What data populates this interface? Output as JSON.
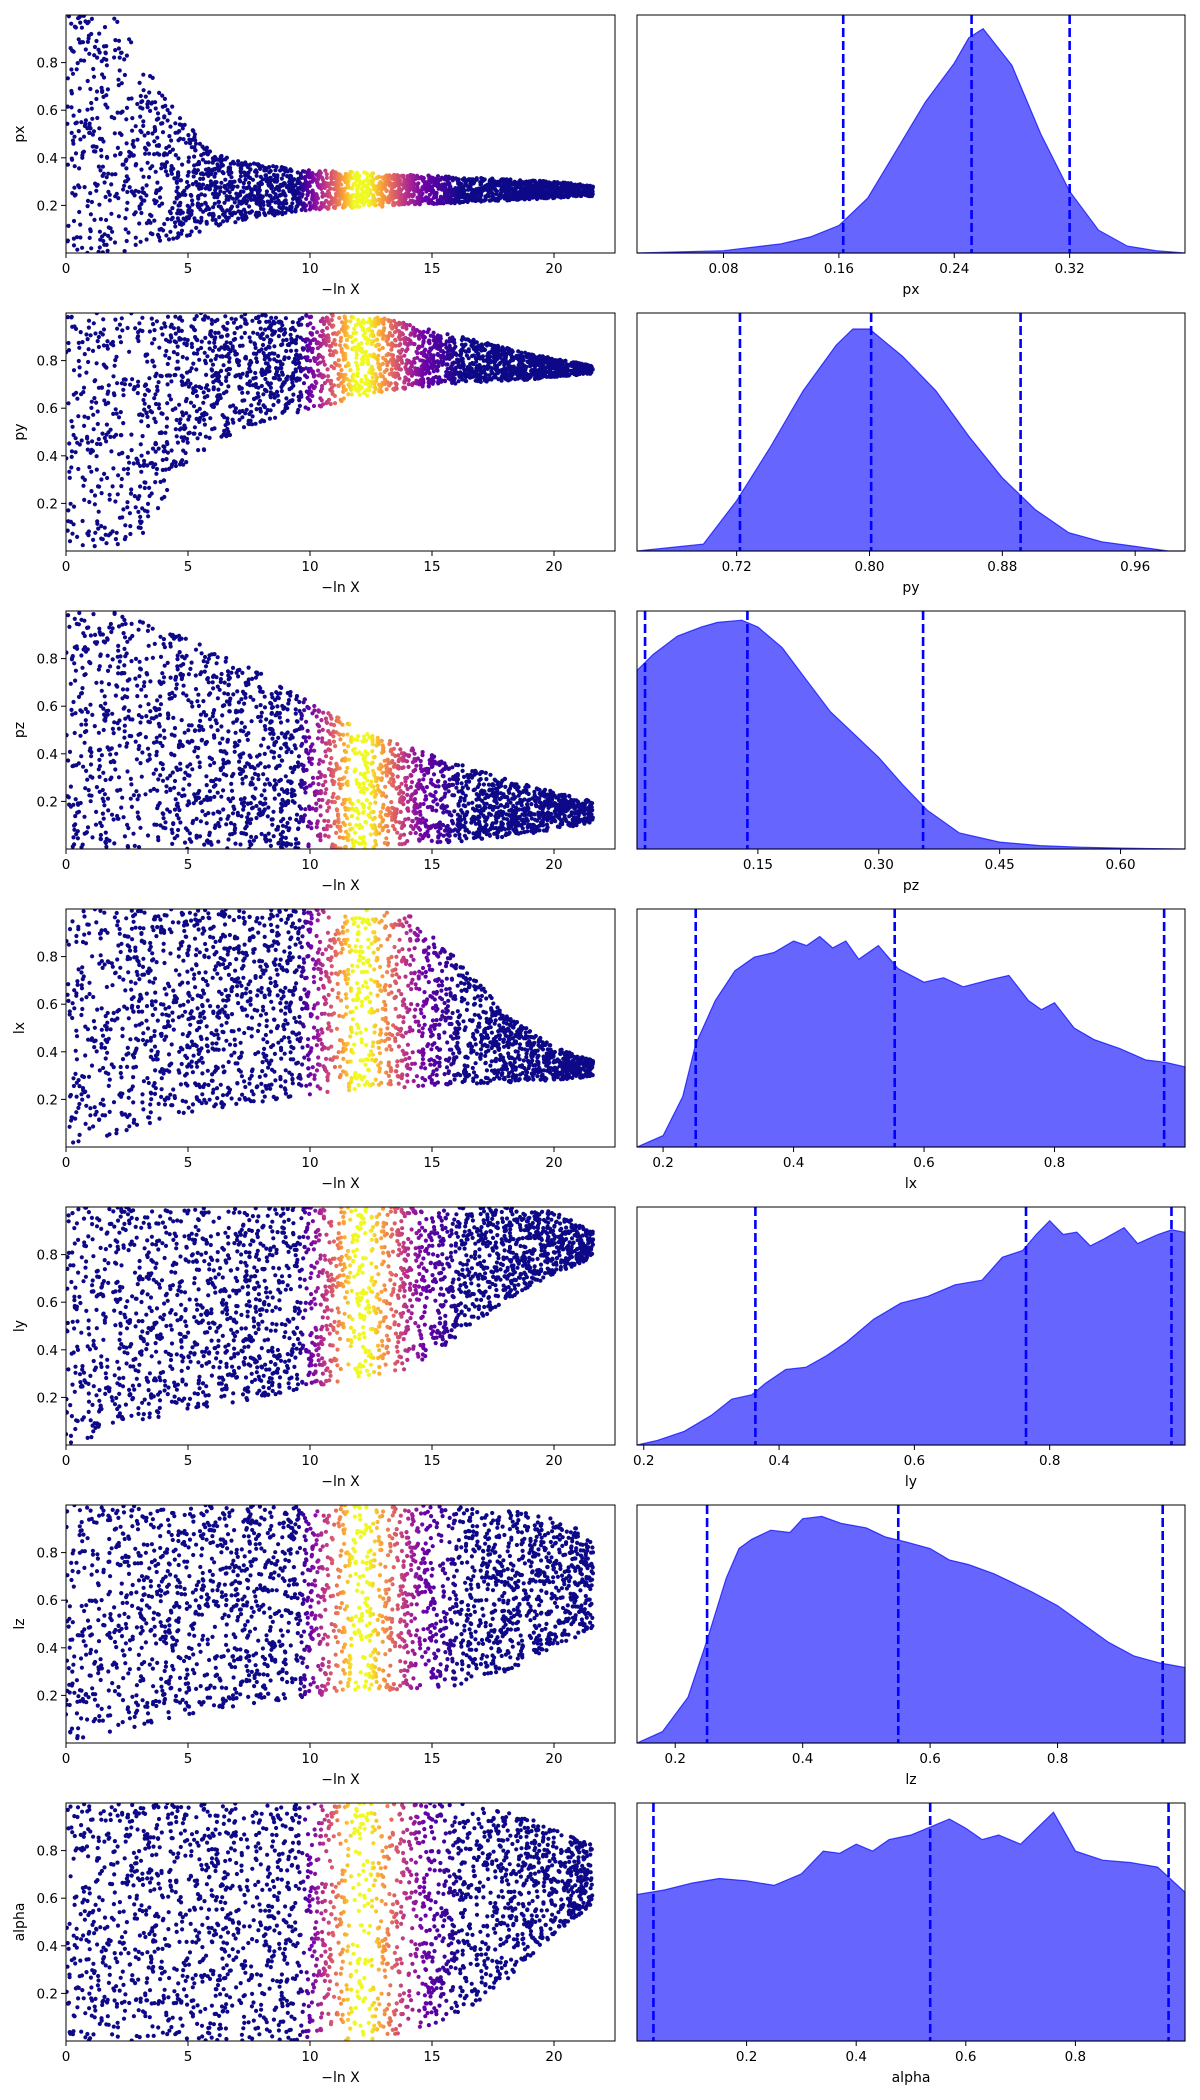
{
  "figure": {
    "background": "#ffffff",
    "trace_xlabel": "−ln X",
    "colormap": "plasma",
    "kde_fill_color": "#0000ff",
    "kde_fill_alpha": 0.6,
    "quantile_line_color": "#0000ff",
    "quantile_line_style": "dashed"
  },
  "chart_data": [
    {
      "type": "scatter",
      "panel": "trace",
      "param": "px",
      "ylabel": "px",
      "xlabel": "−ln X",
      "xlim": [
        0,
        22.5
      ],
      "ylim": [
        0,
        1
      ],
      "xticks": [
        0,
        5,
        10,
        15,
        20
      ],
      "yticks": [
        0.2,
        0.4,
        0.6,
        0.8
      ],
      "x": [
        0,
        2,
        4,
        6,
        8,
        10,
        12,
        14,
        16,
        18,
        20,
        22
      ],
      "y_low": [
        0.0,
        0.0,
        0.03,
        0.11,
        0.15,
        0.18,
        0.19,
        0.2,
        0.21,
        0.22,
        0.23,
        0.24
      ],
      "y_high": [
        1.0,
        1.0,
        0.66,
        0.42,
        0.37,
        0.35,
        0.34,
        0.33,
        0.32,
        0.31,
        0.3,
        0.28
      ],
      "color_peak": 12
    },
    {
      "type": "area",
      "panel": "posterior",
      "param": "px",
      "xlabel": "px",
      "xlim": [
        0.02,
        0.4
      ],
      "xticks": [
        0.08,
        0.16,
        0.24,
        0.32
      ],
      "x": [
        0.02,
        0.08,
        0.12,
        0.14,
        0.16,
        0.18,
        0.2,
        0.22,
        0.24,
        0.25,
        0.26,
        0.28,
        0.3,
        0.32,
        0.34,
        0.36,
        0.38,
        0.4
      ],
      "y": [
        0.0,
        0.01,
        0.04,
        0.07,
        0.12,
        0.24,
        0.45,
        0.66,
        0.83,
        0.94,
        0.98,
        0.82,
        0.52,
        0.27,
        0.1,
        0.03,
        0.01,
        0.0
      ],
      "quantiles": [
        0.163,
        0.252,
        0.32
      ]
    },
    {
      "type": "scatter",
      "panel": "trace",
      "param": "py",
      "ylabel": "py",
      "xlabel": "−ln X",
      "xlim": [
        0,
        22.5
      ],
      "ylim": [
        0,
        1
      ],
      "xticks": [
        0,
        5,
        10,
        15,
        20
      ],
      "yticks": [
        0.2,
        0.4,
        0.6,
        0.8
      ],
      "x": [
        0,
        2,
        3,
        5,
        7,
        9,
        11,
        13,
        15,
        17,
        19,
        21,
        22
      ],
      "y_low": [
        0.0,
        0.0,
        0.05,
        0.38,
        0.5,
        0.57,
        0.62,
        0.67,
        0.69,
        0.71,
        0.72,
        0.74,
        0.75
      ],
      "y_high": [
        1.0,
        1.0,
        1.0,
        1.0,
        1.0,
        1.0,
        1.0,
        0.98,
        0.93,
        0.88,
        0.83,
        0.79,
        0.77
      ],
      "color_peak": 12
    },
    {
      "type": "area",
      "panel": "posterior",
      "param": "py",
      "xlabel": "py",
      "xlim": [
        0.66,
        0.99
      ],
      "xticks": [
        0.72,
        0.8,
        0.88,
        0.96
      ],
      "x": [
        0.66,
        0.7,
        0.72,
        0.74,
        0.76,
        0.78,
        0.79,
        0.8,
        0.82,
        0.84,
        0.86,
        0.88,
        0.9,
        0.92,
        0.94,
        0.96,
        0.98,
        0.99
      ],
      "y": [
        0.0,
        0.03,
        0.22,
        0.45,
        0.7,
        0.9,
        0.97,
        0.97,
        0.85,
        0.7,
        0.5,
        0.32,
        0.18,
        0.08,
        0.04,
        0.02,
        0.0,
        0.0
      ],
      "quantiles": [
        0.722,
        0.801,
        0.891
      ]
    },
    {
      "type": "scatter",
      "panel": "trace",
      "param": "pz",
      "ylabel": "pz",
      "xlabel": "−ln X",
      "xlim": [
        0,
        22.5
      ],
      "ylim": [
        0,
        1
      ],
      "xticks": [
        0,
        5,
        10,
        15,
        20
      ],
      "yticks": [
        0.2,
        0.4,
        0.6,
        0.8
      ],
      "x": [
        0,
        2,
        4,
        6,
        8,
        10,
        12,
        14,
        16,
        18,
        20,
        22
      ],
      "y_low": [
        0.0,
        0.0,
        0.0,
        0.0,
        0.0,
        0.0,
        0.0,
        0.02,
        0.03,
        0.05,
        0.08,
        0.12
      ],
      "y_high": [
        1.0,
        1.0,
        0.93,
        0.84,
        0.74,
        0.63,
        0.5,
        0.43,
        0.36,
        0.3,
        0.24,
        0.19
      ],
      "color_peak": 12
    },
    {
      "type": "area",
      "panel": "posterior",
      "param": "pz",
      "xlabel": "pz",
      "xlim": [
        0.0,
        0.68
      ],
      "xticks": [
        0.15,
        0.3,
        0.45,
        0.6
      ],
      "x": [
        0.0,
        0.02,
        0.05,
        0.08,
        0.1,
        0.13,
        0.15,
        0.18,
        0.21,
        0.24,
        0.27,
        0.3,
        0.33,
        0.36,
        0.4,
        0.45,
        0.5,
        0.55,
        0.6,
        0.68
      ],
      "y": [
        0.78,
        0.85,
        0.93,
        0.97,
        0.99,
        1.0,
        0.97,
        0.88,
        0.74,
        0.6,
        0.5,
        0.4,
        0.28,
        0.17,
        0.07,
        0.03,
        0.015,
        0.008,
        0.004,
        0.0
      ],
      "quantiles": [
        0.01,
        0.137,
        0.355
      ]
    },
    {
      "type": "scatter",
      "panel": "trace",
      "param": "lx",
      "ylabel": "lx",
      "xlabel": "−ln X",
      "xlim": [
        0,
        22.5
      ],
      "ylim": [
        0,
        1
      ],
      "xticks": [
        0,
        5,
        10,
        15,
        20
      ],
      "yticks": [
        0.2,
        0.4,
        0.6,
        0.8
      ],
      "x": [
        0,
        2,
        4,
        6,
        8,
        10,
        12,
        14,
        16,
        18,
        20,
        22
      ],
      "y_low": [
        0.0,
        0.05,
        0.12,
        0.16,
        0.19,
        0.22,
        0.24,
        0.25,
        0.26,
        0.27,
        0.28,
        0.3
      ],
      "y_high": [
        1.0,
        1.0,
        1.0,
        1.0,
        1.0,
        1.0,
        1.0,
        0.98,
        0.8,
        0.56,
        0.42,
        0.35
      ],
      "color_peak": 12
    },
    {
      "type": "area",
      "panel": "posterior",
      "param": "lx",
      "xlabel": "lx",
      "xlim": [
        0.16,
        1.0
      ],
      "xticks": [
        0.2,
        0.4,
        0.6,
        0.8
      ],
      "x": [
        0.16,
        0.2,
        0.23,
        0.25,
        0.28,
        0.31,
        0.34,
        0.37,
        0.4,
        0.42,
        0.44,
        0.46,
        0.48,
        0.5,
        0.53,
        0.56,
        0.6,
        0.63,
        0.66,
        0.7,
        0.73,
        0.76,
        0.78,
        0.8,
        0.83,
        0.86,
        0.9,
        0.94,
        0.97,
        1.0
      ],
      "y": [
        0.0,
        0.05,
        0.22,
        0.45,
        0.64,
        0.77,
        0.83,
        0.85,
        0.9,
        0.88,
        0.92,
        0.87,
        0.9,
        0.82,
        0.88,
        0.78,
        0.72,
        0.74,
        0.7,
        0.73,
        0.75,
        0.64,
        0.6,
        0.63,
        0.52,
        0.47,
        0.43,
        0.38,
        0.37,
        0.35
      ],
      "quantiles": [
        0.25,
        0.555,
        0.968
      ]
    },
    {
      "type": "scatter",
      "panel": "trace",
      "param": "ly",
      "ylabel": "ly",
      "xlabel": "−ln X",
      "xlim": [
        0,
        22.5
      ],
      "ylim": [
        0,
        1
      ],
      "xticks": [
        0,
        5,
        10,
        15,
        20
      ],
      "yticks": [
        0.2,
        0.4,
        0.6,
        0.8
      ],
      "x": [
        0,
        2,
        4,
        6,
        8,
        10,
        12,
        14,
        16,
        18,
        20,
        22
      ],
      "y_low": [
        0.0,
        0.06,
        0.12,
        0.16,
        0.2,
        0.24,
        0.28,
        0.32,
        0.45,
        0.6,
        0.72,
        0.8
      ],
      "y_high": [
        1.0,
        1.0,
        1.0,
        1.0,
        1.0,
        1.0,
        1.0,
        1.0,
        1.0,
        1.0,
        0.98,
        0.88
      ],
      "color_peak": 12
    },
    {
      "type": "area",
      "panel": "posterior",
      "param": "ly",
      "xlabel": "ly",
      "xlim": [
        0.19,
        1.0
      ],
      "xticks": [
        0.2,
        0.4,
        0.6,
        0.8
      ],
      "x": [
        0.19,
        0.22,
        0.26,
        0.3,
        0.33,
        0.36,
        0.38,
        0.41,
        0.44,
        0.47,
        0.5,
        0.54,
        0.58,
        0.62,
        0.66,
        0.7,
        0.73,
        0.76,
        0.78,
        0.8,
        0.82,
        0.84,
        0.86,
        0.88,
        0.91,
        0.93,
        0.96,
        0.98,
        1.0
      ],
      "y": [
        0.0,
        0.02,
        0.06,
        0.13,
        0.2,
        0.22,
        0.27,
        0.33,
        0.34,
        0.39,
        0.45,
        0.55,
        0.62,
        0.65,
        0.7,
        0.72,
        0.82,
        0.85,
        0.92,
        0.98,
        0.92,
        0.93,
        0.87,
        0.9,
        0.95,
        0.88,
        0.92,
        0.94,
        0.93
      ],
      "quantiles": [
        0.365,
        0.765,
        0.98
      ]
    },
    {
      "type": "scatter",
      "panel": "trace",
      "param": "lz",
      "ylabel": "lz",
      "xlabel": "−ln X",
      "xlim": [
        0,
        22.5
      ],
      "ylim": [
        0,
        1
      ],
      "xticks": [
        0,
        5,
        10,
        15,
        20
      ],
      "yticks": [
        0.2,
        0.4,
        0.6,
        0.8
      ],
      "x": [
        0,
        2,
        4,
        6,
        8,
        10,
        12,
        14,
        16,
        18,
        20,
        22
      ],
      "y_low": [
        0.0,
        0.04,
        0.1,
        0.14,
        0.17,
        0.19,
        0.21,
        0.22,
        0.24,
        0.3,
        0.4,
        0.5
      ],
      "y_high": [
        1.0,
        1.0,
        1.0,
        1.0,
        1.0,
        1.0,
        1.0,
        1.0,
        1.0,
        0.98,
        0.95,
        0.85
      ],
      "color_peak": 12
    },
    {
      "type": "area",
      "panel": "posterior",
      "param": "lz",
      "xlabel": "lz",
      "xlim": [
        0.14,
        1.0
      ],
      "xticks": [
        0.2,
        0.4,
        0.6,
        0.8
      ],
      "x": [
        0.14,
        0.18,
        0.22,
        0.25,
        0.28,
        0.3,
        0.32,
        0.35,
        0.38,
        0.4,
        0.43,
        0.46,
        0.5,
        0.53,
        0.56,
        0.6,
        0.63,
        0.66,
        0.7,
        0.73,
        0.76,
        0.8,
        0.84,
        0.88,
        0.92,
        0.96,
        1.0
      ],
      "y": [
        0.0,
        0.05,
        0.2,
        0.45,
        0.72,
        0.85,
        0.89,
        0.93,
        0.92,
        0.98,
        0.99,
        0.96,
        0.94,
        0.9,
        0.88,
        0.85,
        0.8,
        0.78,
        0.74,
        0.7,
        0.66,
        0.6,
        0.52,
        0.44,
        0.38,
        0.35,
        0.33
      ],
      "quantiles": [
        0.25,
        0.55,
        0.965
      ]
    },
    {
      "type": "scatter",
      "panel": "trace",
      "param": "alpha",
      "ylabel": "alpha",
      "xlabel": "−ln X",
      "xlim": [
        0,
        22.5
      ],
      "ylim": [
        0,
        1
      ],
      "xticks": [
        0,
        5,
        10,
        15,
        20
      ],
      "yticks": [
        0.2,
        0.4,
        0.6,
        0.8
      ],
      "x": [
        0,
        2,
        4,
        6,
        8,
        10,
        12,
        14,
        16,
        18,
        20,
        22
      ],
      "y_low": [
        0.0,
        0.0,
        0.0,
        0.0,
        0.0,
        0.0,
        0.0,
        0.02,
        0.1,
        0.25,
        0.45,
        0.6
      ],
      "y_high": [
        1.0,
        1.0,
        1.0,
        1.0,
        1.0,
        1.0,
        1.0,
        1.0,
        1.0,
        0.97,
        0.9,
        0.8
      ],
      "color_peak": 12
    },
    {
      "type": "area",
      "panel": "posterior",
      "param": "alpha",
      "xlabel": "alpha",
      "xlim": [
        0.0,
        1.0
      ],
      "xticks": [
        0.2,
        0.4,
        0.6,
        0.8
      ],
      "x": [
        0.0,
        0.05,
        0.1,
        0.15,
        0.2,
        0.25,
        0.3,
        0.34,
        0.37,
        0.4,
        0.43,
        0.46,
        0.5,
        0.53,
        0.57,
        0.6,
        0.63,
        0.66,
        0.7,
        0.73,
        0.76,
        0.8,
        0.85,
        0.9,
        0.95,
        1.0
      ],
      "y": [
        0.64,
        0.66,
        0.69,
        0.71,
        0.7,
        0.68,
        0.73,
        0.83,
        0.82,
        0.86,
        0.83,
        0.88,
        0.9,
        0.93,
        0.97,
        0.93,
        0.88,
        0.9,
        0.86,
        0.93,
        1.0,
        0.83,
        0.79,
        0.78,
        0.76,
        0.65
      ],
      "quantiles": [
        0.03,
        0.535,
        0.97
      ]
    }
  ]
}
